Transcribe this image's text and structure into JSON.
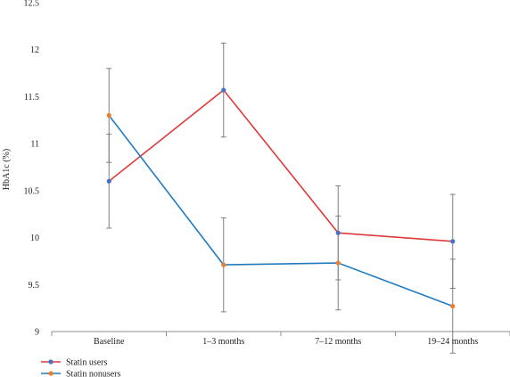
{
  "chart_data": {
    "type": "line",
    "ylabel": "HbA1c (%)",
    "ylim": [
      9,
      12.5
    ],
    "yticks": [
      "9",
      "9.5",
      "10",
      "10.5",
      "11",
      "11.5",
      "12",
      "12.5"
    ],
    "categories": [
      "Baseline",
      "1–3 months",
      "7–12 months",
      "19–24 months"
    ],
    "grid": false,
    "legend_position": "bottom-left",
    "series": [
      {
        "name": "Statin users",
        "line_color": "#e0393b",
        "marker_color": "#4472c4",
        "values": [
          10.6,
          11.57,
          10.05,
          9.96
        ],
        "error_low": [
          10.1,
          11.07,
          9.55,
          9.46
        ],
        "error_high": [
          11.1,
          12.07,
          10.55,
          10.46
        ]
      },
      {
        "name": "Statin nonusers",
        "line_color": "#1f7bbf",
        "marker_color": "#ed7d31",
        "values": [
          11.3,
          9.71,
          9.73,
          9.27
        ],
        "error_low": [
          10.8,
          9.21,
          9.23,
          8.77
        ],
        "error_high": [
          11.8,
          10.21,
          10.23,
          9.77
        ]
      }
    ]
  }
}
